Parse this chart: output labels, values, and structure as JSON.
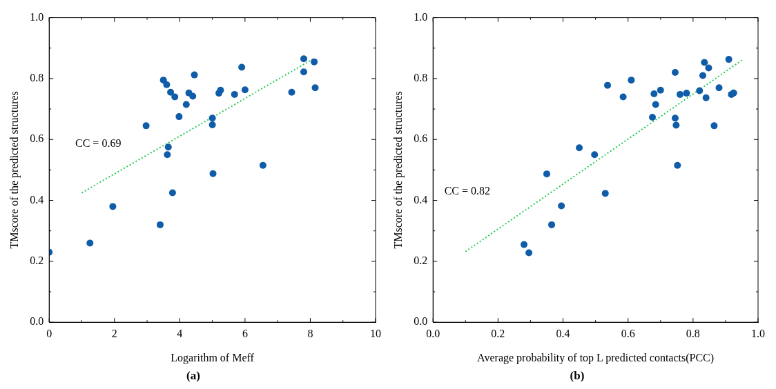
{
  "chart_data": [
    {
      "type": "scatter",
      "title": "(a)",
      "xlabel": "Logarithm of Meff",
      "ylabel": "TMscore of the predicted structures",
      "annotations": [
        "CC = 0.69"
      ],
      "xlim": [
        0,
        10
      ],
      "ylim": [
        0,
        1
      ],
      "xticks": [
        0,
        {
          "value": 1,
          "label": null
        },
        2,
        {
          "value": 3,
          "label": null
        },
        4,
        {
          "value": 5,
          "label": null
        },
        6,
        {
          "value": 7,
          "label": null
        },
        8,
        {
          "value": 9,
          "label": null
        },
        10
      ],
      "yticks": [
        {
          "value": 0,
          "label": "0.0"
        },
        {
          "value": 0.1,
          "label": null
        },
        {
          "value": 0.2,
          "label": "0.2"
        },
        {
          "value": 0.3,
          "label": null
        },
        {
          "value": 0.4,
          "label": "0.4"
        },
        {
          "value": 0.5,
          "label": null
        },
        {
          "value": 0.6,
          "label": "0.6"
        },
        {
          "value": 0.7,
          "label": null
        },
        {
          "value": 0.8,
          "label": "0.8"
        },
        {
          "value": 0.9,
          "label": null
        },
        {
          "value": 1,
          "label": "1.0"
        }
      ],
      "grid": false,
      "legend": false,
      "series": [
        {
          "marker": "circle",
          "color": "#0f5ca8",
          "x": [
            0,
            1.25,
            1.95,
            2.97,
            3.4,
            3.5,
            3.6,
            3.62,
            3.65,
            3.72,
            3.78,
            3.85,
            3.98,
            4.2,
            4.28,
            4.4,
            4.45,
            5.0,
            5.0,
            5.02,
            5.2,
            5.25,
            5.68,
            5.9,
            6.0,
            6.55,
            7.43,
            7.8,
            7.8,
            8.12,
            8.15
          ],
          "values": [
            0.23,
            0.26,
            0.38,
            0.645,
            0.32,
            0.795,
            0.78,
            0.55,
            0.575,
            0.755,
            0.425,
            0.74,
            0.675,
            0.715,
            0.753,
            0.742,
            0.812,
            0.67,
            0.648,
            0.488,
            0.752,
            0.762,
            0.748,
            0.837,
            0.763,
            0.515,
            0.755,
            0.865,
            0.822,
            0.855,
            0.77
          ]
        },
        {
          "type": "line",
          "marker": "none",
          "line_style": "dotted",
          "color": "#22cc55",
          "x": [
            1,
            8.1
          ],
          "values": [
            0.425,
            0.865
          ]
        }
      ]
    },
    {
      "type": "scatter",
      "title": "(b)",
      "xlabel": "Average probability of top L predicted contacts(PCC)",
      "ylabel": "TMscore of the predicted structures",
      "annotations": [
        "CC = 0.82"
      ],
      "xlim": [
        0,
        1
      ],
      "ylim": [
        0,
        1
      ],
      "xticks": [
        {
          "value": 0,
          "label": "0.0"
        },
        {
          "value": 0.1,
          "label": null
        },
        {
          "value": 0.2,
          "label": "0.2"
        },
        {
          "value": 0.3,
          "label": null
        },
        {
          "value": 0.4,
          "label": "0.4"
        },
        {
          "value": 0.5,
          "label": null
        },
        {
          "value": 0.6,
          "label": "0.6"
        },
        {
          "value": 0.7,
          "label": null
        },
        {
          "value": 0.8,
          "label": "0.8"
        },
        {
          "value": 0.9,
          "label": null
        },
        {
          "value": 1,
          "label": "1.0"
        }
      ],
      "yticks": [
        {
          "value": 0,
          "label": "0.0"
        },
        {
          "value": 0.1,
          "label": null
        },
        {
          "value": 0.2,
          "label": "0.2"
        },
        {
          "value": 0.3,
          "label": null
        },
        {
          "value": 0.4,
          "label": "0.4"
        },
        {
          "value": 0.5,
          "label": null
        },
        {
          "value": 0.6,
          "label": "0.6"
        },
        {
          "value": 0.7,
          "label": null
        },
        {
          "value": 0.8,
          "label": "0.8"
        },
        {
          "value": 0.9,
          "label": null
        },
        {
          "value": 1,
          "label": "1.0"
        }
      ],
      "grid": false,
      "legend": false,
      "series": [
        {
          "marker": "circle",
          "color": "#0f5ca8",
          "x": [
            0.28,
            0.295,
            0.35,
            0.365,
            0.395,
            0.45,
            0.497,
            0.53,
            0.537,
            0.585,
            0.61,
            0.675,
            0.68,
            0.685,
            0.7,
            0.745,
            0.745,
            0.748,
            0.752,
            0.76,
            0.78,
            0.82,
            0.83,
            0.835,
            0.84,
            0.848,
            0.865,
            0.88,
            0.91,
            0.918,
            0.925
          ],
          "values": [
            0.255,
            0.228,
            0.487,
            0.32,
            0.382,
            0.573,
            0.55,
            0.423,
            0.778,
            0.74,
            0.795,
            0.673,
            0.75,
            0.715,
            0.762,
            0.82,
            0.67,
            0.647,
            0.515,
            0.748,
            0.752,
            0.76,
            0.81,
            0.853,
            0.737,
            0.835,
            0.645,
            0.77,
            0.863,
            0.748,
            0.753
          ]
        },
        {
          "type": "line",
          "marker": "none",
          "line_style": "dotted",
          "color": "#22cc55",
          "x": [
            0.1,
            0.95
          ],
          "values": [
            0.232,
            0.86
          ]
        }
      ]
    }
  ]
}
